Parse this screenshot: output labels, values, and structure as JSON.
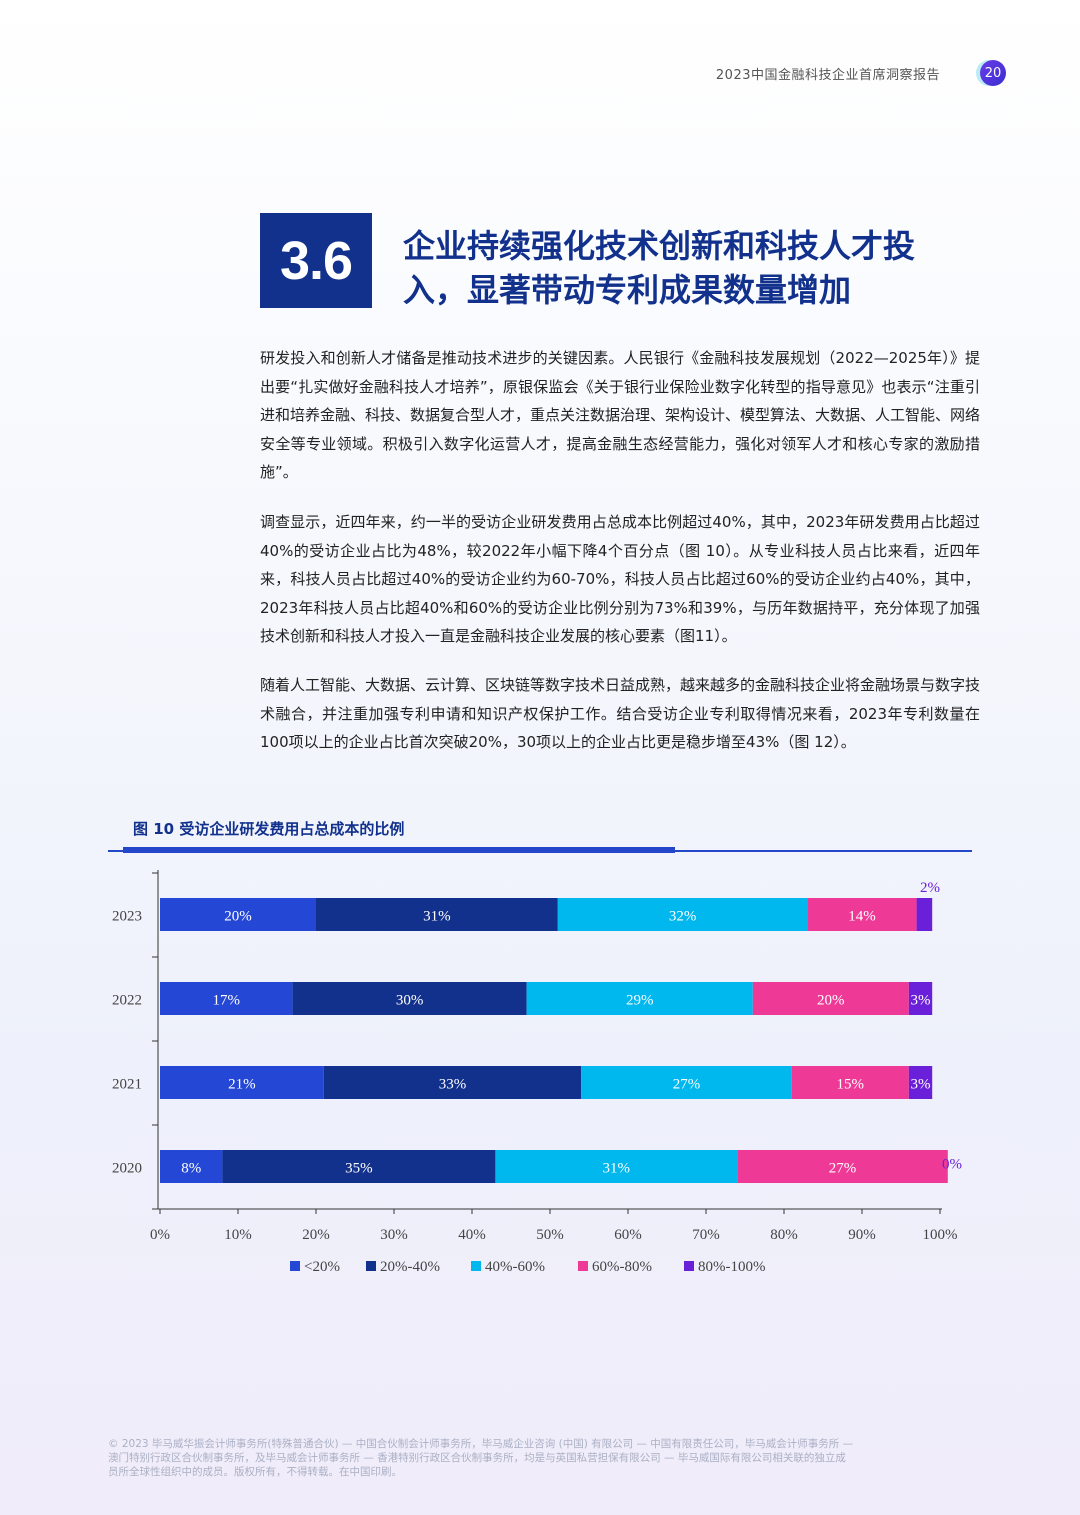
{
  "header": {
    "report_title": "2023中国金融科技企业首席洞察报告",
    "page_number": "20"
  },
  "section": {
    "number": "3.6",
    "title_line1": "企业持续强化技术创新和科技人才投",
    "title_line2": "入，显著带动专利成果数量增加"
  },
  "paragraphs": [
    "研发投入和创新人才储备是推动技术进步的关键因素。人民银行《金融科技发展规划（2022—2025年）》提出要“扎实做好金融科技人才培养”，原银保监会《关于银行业保险业数字化转型的指导意见》也表示“注重引进和培养金融、科技、数据复合型人才，重点关注数据治理、架构设计、模型算法、大数据、人工智能、网络安全等专业领域。积极引入数字化运营人才，提高金融生态经营能力，强化对领军人才和核心专家的激励措施”。",
    "调查显示，近四年来，约一半的受访企业研发费用占总成本比例超过40%，其中，2023年研发费用占比超过40%的受访企业占比为48%，较2022年小幅下降4个百分点（图 10）。从专业科技人员占比来看，近四年来，科技人员占比超过40%的受访企业约为60-70%，科技人员占比超过60%的受访企业约占40%，其中，2023年科技人员占比超40%和60%的受访企业比例分别为73%和39%，与历年数据持平，充分体现了加强技术创新和科技人才投入一直是金融科技企业发展的核心要素（图11）。",
    "随着人工智能、大数据、云计算、区块链等数字技术日益成熟，越来越多的金融科技企业将金融场景与数字技术融合，并注重加强专利申请和知识产权保护工作。结合受访企业专利取得情况来看，2023年专利数量在100项以上的企业占比首次突破20%，30项以上的企业占比更是稳步增至43%（图 12）。"
  ],
  "figure": {
    "title": "图 10 受访企业研发费用占总成本的比例"
  },
  "chart_data": {
    "type": "bar",
    "orientation": "horizontal",
    "stacked": true,
    "categories": [
      "2023",
      "2022",
      "2021",
      "2020"
    ],
    "series": [
      {
        "name": "<20%",
        "values": [
          20,
          17,
          21,
          8
        ],
        "labels": [
          "20%",
          "17%",
          "21%",
          "8%"
        ],
        "color": "#2447d6"
      },
      {
        "name": "20%-40%",
        "values": [
          31,
          30,
          33,
          35
        ],
        "labels": [
          "31%",
          "30%",
          "33%",
          "35%"
        ],
        "color": "#12318c"
      },
      {
        "name": "40%-60%",
        "values": [
          32,
          29,
          27,
          31
        ],
        "labels": [
          "32%",
          "29%",
          "27%",
          "31%"
        ],
        "color": "#00b7ee"
      },
      {
        "name": "60%-80%",
        "values": [
          14,
          20,
          15,
          27
        ],
        "labels": [
          "14%",
          "20%",
          "15%",
          "27%"
        ],
        "color": "#ee3a96"
      },
      {
        "name": "80%-100%",
        "values": [
          2,
          3,
          3,
          0
        ],
        "labels": [
          "2%",
          "3%",
          "3%",
          "0%"
        ],
        "color": "#6a1fd9"
      }
    ],
    "x_ticks": [
      "0%",
      "10%",
      "20%",
      "30%",
      "40%",
      "50%",
      "60%",
      "70%",
      "80%",
      "90%",
      "100%"
    ],
    "xlim": [
      0,
      100
    ],
    "legend_position": "bottom",
    "grid": false
  },
  "footer": {
    "line1": "© 2023 毕马威华振会计师事务所(特殊普通合伙) — 中国合伙制会计师事务所，毕马威企业咨询 (中国) 有限公司 — 中国有限责任公司，毕马威会计师事务所 —",
    "line2": "澳门特别行政区合伙制事务所，及毕马威会计师事务所 — 香港特别行政区合伙制事务所，均是与英国私营担保有限公司 — 毕马威国际有限公司相关联的独立成",
    "line3": "员所全球性组织中的成员。版权所有，不得转载。在中国印刷。"
  }
}
